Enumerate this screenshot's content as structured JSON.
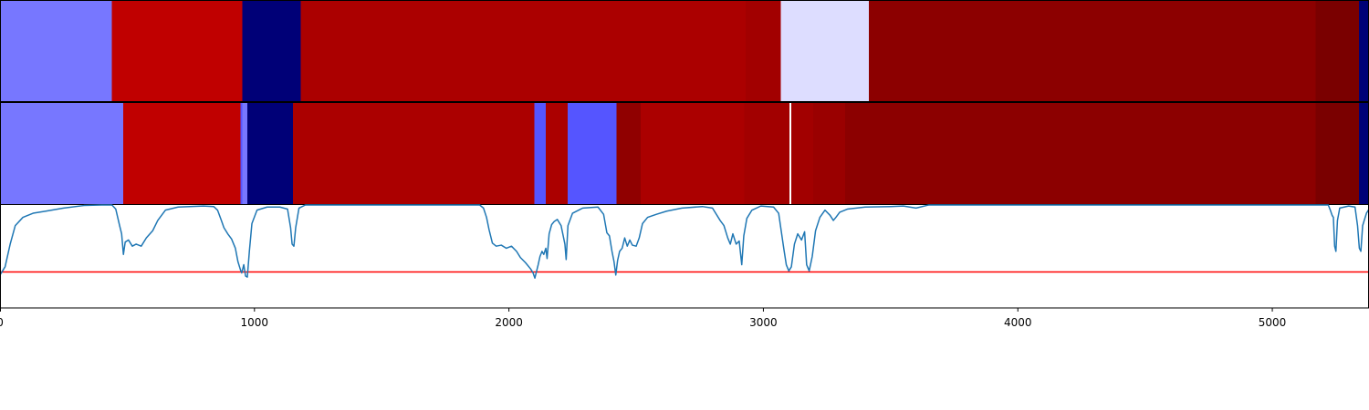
{
  "chart_data": {
    "type": "heatmap",
    "xlim": [
      0,
      5380
    ],
    "x_ticks": [
      0,
      1000,
      2000,
      3000,
      4000,
      5000
    ],
    "x_tick_labels": [
      "0",
      "1000",
      "2000",
      "3000",
      "4000",
      "5000"
    ],
    "grid": false,
    "rows": [
      {
        "segments": [
          {
            "start": 0,
            "end": 440,
            "color": "#7777ff"
          },
          {
            "start": 440,
            "end": 952,
            "color": "#c00000"
          },
          {
            "start": 952,
            "end": 1182,
            "color": "#000077"
          },
          {
            "start": 1182,
            "end": 2930,
            "color": "#ab0000"
          },
          {
            "start": 2930,
            "end": 3068,
            "color": "#a20000"
          },
          {
            "start": 3068,
            "end": 3415,
            "color": "#ddddff"
          },
          {
            "start": 3415,
            "end": 5170,
            "color": "#8c0000"
          },
          {
            "start": 5170,
            "end": 5340,
            "color": "#7a0000"
          },
          {
            "start": 5340,
            "end": 5380,
            "color": "#000077"
          }
        ]
      },
      {
        "segments": [
          {
            "start": 0,
            "end": 484,
            "color": "#7777ff"
          },
          {
            "start": 484,
            "end": 945,
            "color": "#c00000"
          },
          {
            "start": 945,
            "end": 953,
            "color": "#5555ff"
          },
          {
            "start": 953,
            "end": 972,
            "color": "#7777ff"
          },
          {
            "start": 972,
            "end": 1152,
            "color": "#000077"
          },
          {
            "start": 1152,
            "end": 2100,
            "color": "#ab0000"
          },
          {
            "start": 2100,
            "end": 2145,
            "color": "#5555ff"
          },
          {
            "start": 2145,
            "end": 2230,
            "color": "#ab0000"
          },
          {
            "start": 2230,
            "end": 2422,
            "color": "#5555ff"
          },
          {
            "start": 2422,
            "end": 2517,
            "color": "#900000"
          },
          {
            "start": 2517,
            "end": 2925,
            "color": "#ab0000"
          },
          {
            "start": 2925,
            "end": 3103,
            "color": "#a20000"
          },
          {
            "start": 3103,
            "end": 3110,
            "color": "#ffffff"
          },
          {
            "start": 3110,
            "end": 3195,
            "color": "#a20000"
          },
          {
            "start": 3195,
            "end": 3322,
            "color": "#9a0000"
          },
          {
            "start": 3322,
            "end": 5170,
            "color": "#8c0000"
          },
          {
            "start": 5170,
            "end": 5340,
            "color": "#7a0000"
          },
          {
            "start": 5340,
            "end": 5380,
            "color": "#000077"
          }
        ]
      }
    ],
    "line": {
      "color": "#1f77b4",
      "ylim": [
        0,
        1
      ],
      "points": [
        [
          0,
          0.32
        ],
        [
          20,
          0.4
        ],
        [
          40,
          0.62
        ],
        [
          60,
          0.8
        ],
        [
          90,
          0.88
        ],
        [
          130,
          0.92
        ],
        [
          180,
          0.94
        ],
        [
          250,
          0.97
        ],
        [
          330,
          0.995
        ],
        [
          400,
          1.0
        ],
        [
          440,
          1.0
        ],
        [
          455,
          0.96
        ],
        [
          470,
          0.8
        ],
        [
          478,
          0.72
        ],
        [
          485,
          0.52
        ],
        [
          492,
          0.64
        ],
        [
          505,
          0.66
        ],
        [
          520,
          0.6
        ],
        [
          535,
          0.62
        ],
        [
          555,
          0.6
        ],
        [
          575,
          0.68
        ],
        [
          600,
          0.75
        ],
        [
          620,
          0.85
        ],
        [
          650,
          0.95
        ],
        [
          700,
          0.98
        ],
        [
          800,
          0.99
        ],
        [
          840,
          0.985
        ],
        [
          855,
          0.95
        ],
        [
          870,
          0.85
        ],
        [
          880,
          0.78
        ],
        [
          895,
          0.72
        ],
        [
          910,
          0.67
        ],
        [
          925,
          0.58
        ],
        [
          935,
          0.45
        ],
        [
          945,
          0.37
        ],
        [
          950,
          0.34
        ],
        [
          958,
          0.42
        ],
        [
          965,
          0.31
        ],
        [
          972,
          0.3
        ],
        [
          980,
          0.55
        ],
        [
          990,
          0.82
        ],
        [
          1010,
          0.95
        ],
        [
          1050,
          0.98
        ],
        [
          1100,
          0.98
        ],
        [
          1130,
          0.96
        ],
        [
          1142,
          0.78
        ],
        [
          1148,
          0.62
        ],
        [
          1155,
          0.6
        ],
        [
          1162,
          0.78
        ],
        [
          1175,
          0.97
        ],
        [
          1200,
          1.0
        ],
        [
          1800,
          1.0
        ],
        [
          1885,
          1.0
        ],
        [
          1900,
          0.97
        ],
        [
          1912,
          0.88
        ],
        [
          1922,
          0.76
        ],
        [
          1935,
          0.63
        ],
        [
          1950,
          0.6
        ],
        [
          1970,
          0.61
        ],
        [
          1990,
          0.58
        ],
        [
          2010,
          0.6
        ],
        [
          2030,
          0.55
        ],
        [
          2045,
          0.49
        ],
        [
          2065,
          0.44
        ],
        [
          2085,
          0.38
        ],
        [
          2095,
          0.34
        ],
        [
          2102,
          0.29
        ],
        [
          2108,
          0.35
        ],
        [
          2115,
          0.42
        ],
        [
          2122,
          0.5
        ],
        [
          2130,
          0.55
        ],
        [
          2137,
          0.52
        ],
        [
          2145,
          0.58
        ],
        [
          2150,
          0.48
        ],
        [
          2158,
          0.72
        ],
        [
          2168,
          0.81
        ],
        [
          2178,
          0.84
        ],
        [
          2190,
          0.86
        ],
        [
          2205,
          0.8
        ],
        [
          2220,
          0.62
        ],
        [
          2225,
          0.47
        ],
        [
          2232,
          0.8
        ],
        [
          2250,
          0.92
        ],
        [
          2290,
          0.97
        ],
        [
          2350,
          0.98
        ],
        [
          2372,
          0.91
        ],
        [
          2385,
          0.73
        ],
        [
          2395,
          0.7
        ],
        [
          2405,
          0.55
        ],
        [
          2413,
          0.45
        ],
        [
          2420,
          0.32
        ],
        [
          2427,
          0.46
        ],
        [
          2435,
          0.55
        ],
        [
          2445,
          0.58
        ],
        [
          2455,
          0.68
        ],
        [
          2465,
          0.6
        ],
        [
          2475,
          0.66
        ],
        [
          2485,
          0.61
        ],
        [
          2500,
          0.6
        ],
        [
          2512,
          0.68
        ],
        [
          2525,
          0.82
        ],
        [
          2545,
          0.88
        ],
        [
          2580,
          0.91
        ],
        [
          2620,
          0.94
        ],
        [
          2680,
          0.97
        ],
        [
          2760,
          0.985
        ],
        [
          2800,
          0.97
        ],
        [
          2830,
          0.85
        ],
        [
          2845,
          0.8
        ],
        [
          2860,
          0.68
        ],
        [
          2870,
          0.62
        ],
        [
          2880,
          0.72
        ],
        [
          2893,
          0.62
        ],
        [
          2905,
          0.65
        ],
        [
          2915,
          0.42
        ],
        [
          2923,
          0.7
        ],
        [
          2935,
          0.87
        ],
        [
          2955,
          0.95
        ],
        [
          2990,
          0.99
        ],
        [
          3040,
          0.98
        ],
        [
          3060,
          0.92
        ],
        [
          3070,
          0.75
        ],
        [
          3080,
          0.58
        ],
        [
          3090,
          0.42
        ],
        [
          3100,
          0.36
        ],
        [
          3110,
          0.4
        ],
        [
          3122,
          0.62
        ],
        [
          3135,
          0.72
        ],
        [
          3150,
          0.66
        ],
        [
          3162,
          0.74
        ],
        [
          3170,
          0.42
        ],
        [
          3180,
          0.36
        ],
        [
          3192,
          0.5
        ],
        [
          3205,
          0.75
        ],
        [
          3222,
          0.88
        ],
        [
          3242,
          0.95
        ],
        [
          3262,
          0.9
        ],
        [
          3275,
          0.85
        ],
        [
          3285,
          0.88
        ],
        [
          3300,
          0.93
        ],
        [
          3330,
          0.96
        ],
        [
          3400,
          0.98
        ],
        [
          3500,
          0.985
        ],
        [
          3550,
          0.99
        ],
        [
          3600,
          0.97
        ],
        [
          3650,
          1.0
        ],
        [
          5220,
          1.0
        ],
        [
          5228,
          0.95
        ],
        [
          5235,
          0.9
        ],
        [
          5240,
          0.88
        ],
        [
          5245,
          0.6
        ],
        [
          5250,
          0.55
        ],
        [
          5256,
          0.85
        ],
        [
          5265,
          0.97
        ],
        [
          5300,
          0.99
        ],
        [
          5325,
          0.98
        ],
        [
          5335,
          0.8
        ],
        [
          5342,
          0.58
        ],
        [
          5348,
          0.55
        ],
        [
          5355,
          0.8
        ],
        [
          5370,
          0.92
        ],
        [
          5380,
          0.96
        ]
      ]
    },
    "threshold": {
      "value": 0.35,
      "color": "#ff0000"
    }
  }
}
